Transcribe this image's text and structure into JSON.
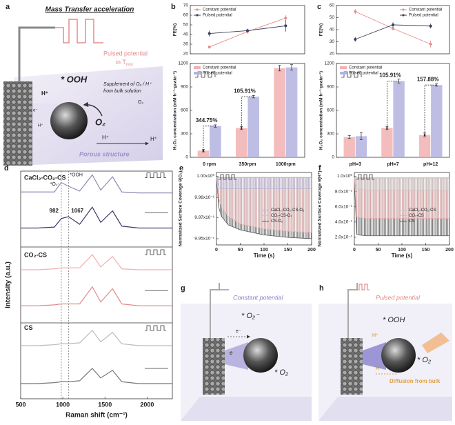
{
  "panels": {
    "a": {
      "label": "a",
      "title": "Mass Transfer acceleration",
      "pulse": [
        "Pulsed potential",
        "in T"
      ],
      "pulse_sub": "rest",
      "ooh": "* OOH",
      "supplement": [
        "Supplement of O₂ / H⁺",
        "from bulk solution"
      ],
      "o2": "O₂",
      "o2_small": "O₂",
      "h": [
        "H⁺",
        "H⁺",
        "H⁺",
        "H⁺"
      ],
      "e": "e⁻",
      "porous": "Porous structure"
    },
    "g": {
      "label": "g",
      "title": "Constant potential",
      "o2m": "* O₂⁻",
      "e1": "e⁻",
      "e2": "e",
      "o2": "* O₂"
    },
    "h": {
      "label": "h",
      "title": "Pulsed potential",
      "ooh": "* OOH",
      "h": [
        "H⁺",
        "H⁺"
      ],
      "o2": "* O₂",
      "diffusion": "Diffusion from bulk"
    }
  },
  "chart_data": [
    {
      "type": "line",
      "panel": "b",
      "ylabel": "FE(%)",
      "ylim": [
        20,
        70
      ],
      "yticks": [
        20,
        30,
        40,
        50,
        60,
        70
      ],
      "legend": "upper left",
      "series": [
        {
          "name": "Constant potential",
          "color": "#e58c8c",
          "values": [
            27,
            43,
            57
          ],
          "errors": [
            1.5,
            2,
            3
          ]
        },
        {
          "name": "Pulsed potential",
          "color": "#3d3d5c",
          "values": [
            41,
            44,
            49
          ],
          "errors": [
            3,
            2,
            6
          ]
        }
      ]
    },
    {
      "type": "bar",
      "ylabel": "H₂O₂ concentration (mM·h⁻¹·gcata⁻¹)",
      "categories": [
        "0 rpm",
        "350rpm",
        "1000rpm"
      ],
      "ylim": [
        0,
        1200
      ],
      "yticks": [
        0,
        300,
        600,
        900,
        1200
      ],
      "legend": "upper left",
      "series": [
        {
          "name": "Constant potential",
          "color": "#f2b1b1",
          "values": [
            85,
            375,
            1140
          ],
          "errors": [
            15,
            20,
            35
          ]
        },
        {
          "name": "Pulsed potential",
          "color": "#b3b3e0",
          "values": [
            400,
            775,
            1150
          ],
          "errors": [
            15,
            15,
            35
          ]
        }
      ],
      "annotations": [
        "344.75%",
        "105.91%"
      ]
    },
    {
      "type": "line",
      "panel": "c",
      "ylabel": "FE(%)",
      "ylim": [
        20,
        60
      ],
      "yticks": [
        20,
        30,
        40,
        50,
        60
      ],
      "legend": "upper right",
      "series": [
        {
          "name": "Constant potential",
          "color": "#e58c8c",
          "values": [
            55,
            41,
            28
          ],
          "errors": [
            2,
            1.5,
            3
          ]
        },
        {
          "name": "Pulsed potential",
          "color": "#3d3d5c",
          "values": [
            32,
            44,
            43
          ],
          "errors": [
            2,
            2,
            2
          ]
        }
      ]
    },
    {
      "type": "bar",
      "ylabel": "H₂O₂ concentration (mM·h⁻¹·gcata⁻¹)",
      "categories": [
        "pH=3",
        "pH=7",
        "pH=12"
      ],
      "ylim": [
        0,
        1200
      ],
      "yticks": [
        0,
        300,
        600,
        900,
        1200
      ],
      "legend": "upper left",
      "series": [
        {
          "name": "Constant potential",
          "color": "#f2b1b1",
          "values": [
            260,
            375,
            285
          ],
          "errors": [
            20,
            20,
            25
          ]
        },
        {
          "name": "Pulsed potential",
          "color": "#b3b3e0",
          "values": [
            270,
            975,
            925
          ],
          "errors": [
            45,
            25,
            15
          ]
        }
      ],
      "annotations": [
        "105.91%",
        "157.88%"
      ]
    },
    {
      "type": "line",
      "panel": "d",
      "xlabel": "Raman shift (cm⁻¹)",
      "ylabel": "Intensity (a.u.)",
      "xlim": [
        500,
        2300
      ],
      "xticks": [
        500,
        1000,
        1500,
        2000
      ],
      "ylim": [
        0,
        12
      ],
      "x": [
        500,
        700,
        900,
        982,
        1067,
        1200,
        1350,
        1450,
        1590,
        1700,
        1900,
        2100,
        2300
      ],
      "groups": [
        "CaCl₂-CO₂-CS",
        "CO₂-CS",
        "CS"
      ],
      "series": [
        {
          "color": "#8a8ab0",
          "values": [
            10.9,
            10.9,
            10.9,
            11.4,
            11.2,
            10.95,
            11.8,
            11.0,
            11.7,
            10.9,
            10.85,
            10.85,
            10.85
          ]
        },
        {
          "color": "#3a3a6a",
          "values": [
            9.0,
            9.0,
            9.05,
            9.5,
            9.6,
            9.2,
            10.1,
            9.3,
            9.9,
            9.1,
            9.0,
            9.0,
            9.0
          ]
        },
        {
          "color": "#f0b0b0",
          "values": [
            6.8,
            6.8,
            6.85,
            6.9,
            6.9,
            6.9,
            7.6,
            6.95,
            7.5,
            6.85,
            6.8,
            6.8,
            6.8
          ]
        },
        {
          "color": "#e08a8a",
          "values": [
            4.9,
            4.9,
            4.95,
            5.0,
            5.0,
            5.0,
            5.9,
            5.1,
            5.8,
            5.0,
            4.9,
            4.9,
            4.9
          ]
        },
        {
          "color": "#bbbbbb",
          "values": [
            2.8,
            2.8,
            2.85,
            2.9,
            2.9,
            2.95,
            3.6,
            3.0,
            3.5,
            2.9,
            2.8,
            2.8,
            2.8
          ]
        },
        {
          "color": "#777777",
          "values": [
            0.8,
            0.8,
            0.85,
            0.9,
            0.9,
            0.95,
            1.6,
            1.1,
            1.5,
            0.9,
            0.8,
            0.8,
            0.8
          ]
        }
      ],
      "peaks": [
        {
          "value": 982,
          "label": "982"
        },
        {
          "value": 1067,
          "label": "1067"
        }
      ],
      "annotations": [
        "*O₂-",
        "*OOH"
      ]
    },
    {
      "type": "line",
      "panel": "e",
      "xlabel": "Time (s)",
      "ylabel": "Normalized Surface Coverage θ(O₂)",
      "xlim": [
        0,
        200
      ],
      "xticks": [
        0,
        50,
        100,
        150,
        200
      ],
      "ylim": [
        0.9945,
        1.0003
      ],
      "yticks": [
        {
          "value": 1.0,
          "label": "1.00x10⁰"
        },
        {
          "value": 0.9983,
          "label": "9.98x10⁻¹"
        },
        {
          "value": 0.9967,
          "label": "9.97x10⁻¹"
        },
        {
          "value": 0.995,
          "label": "9.95x10⁻¹"
        }
      ],
      "legend": "center right",
      "x": [
        0,
        5,
        10,
        25,
        50,
        100,
        150,
        200
      ],
      "series": [
        {
          "name": "CaCl₂-CO₂-CS-O₂",
          "color": "#b6b6d8",
          "values": [
            0.9999,
            0.9991,
            0.999,
            0.999,
            0.999,
            0.999,
            0.999,
            0.999
          ],
          "upper": 0.9999
        },
        {
          "name": "CO₂-CS-O₂",
          "color": "#f2b8b8",
          "values": [
            0.9999,
            0.9982,
            0.9976,
            0.9968,
            0.9962,
            0.9958,
            0.9956,
            0.9955
          ],
          "upper": 0.9999
        },
        {
          "name": "CS-O₂",
          "color": "#555555",
          "values": [
            0.9999,
            0.9975,
            0.9968,
            0.9961,
            0.9957,
            0.9953,
            0.9951,
            0.995
          ],
          "upper": 0.9999
        }
      ]
    },
    {
      "type": "line",
      "panel": "f",
      "xlabel": "Time (s)",
      "ylabel": "Normalized Surface Coverage θ(H⁺)",
      "xlim": [
        0,
        200
      ],
      "xticks": [
        0,
        50,
        100,
        150,
        200
      ],
      "ylim": [
        0.1,
        1.05
      ],
      "yticks": [
        {
          "value": 1.0,
          "label": "1.0x10⁰"
        },
        {
          "value": 0.8,
          "label": "8.0x10⁻¹"
        },
        {
          "value": 0.6,
          "label": "6.0x10⁻¹"
        },
        {
          "value": 0.4,
          "label": "4.0x10⁻¹"
        },
        {
          "value": 0.2,
          "label": "2.0x10⁻¹"
        }
      ],
      "legend": "center right",
      "x": [
        0,
        5,
        10,
        25,
        50,
        100,
        150,
        200
      ],
      "series": [
        {
          "name": "CaCl₂-CO₂-CS",
          "color": "#c8c8c8",
          "values": [
            0.98,
            0.84,
            0.83,
            0.82,
            0.82,
            0.82,
            0.82,
            0.82
          ],
          "upper": 0.98
        },
        {
          "name": "CO₂-CS",
          "color": "#f2b0b0",
          "values": [
            0.98,
            0.47,
            0.46,
            0.45,
            0.45,
            0.45,
            0.45,
            0.45
          ],
          "upper": 0.98
        },
        {
          "name": "CS",
          "color": "#555555",
          "values": [
            0.98,
            0.24,
            0.23,
            0.22,
            0.22,
            0.22,
            0.22,
            0.22
          ],
          "upper": 0.98
        }
      ]
    }
  ]
}
